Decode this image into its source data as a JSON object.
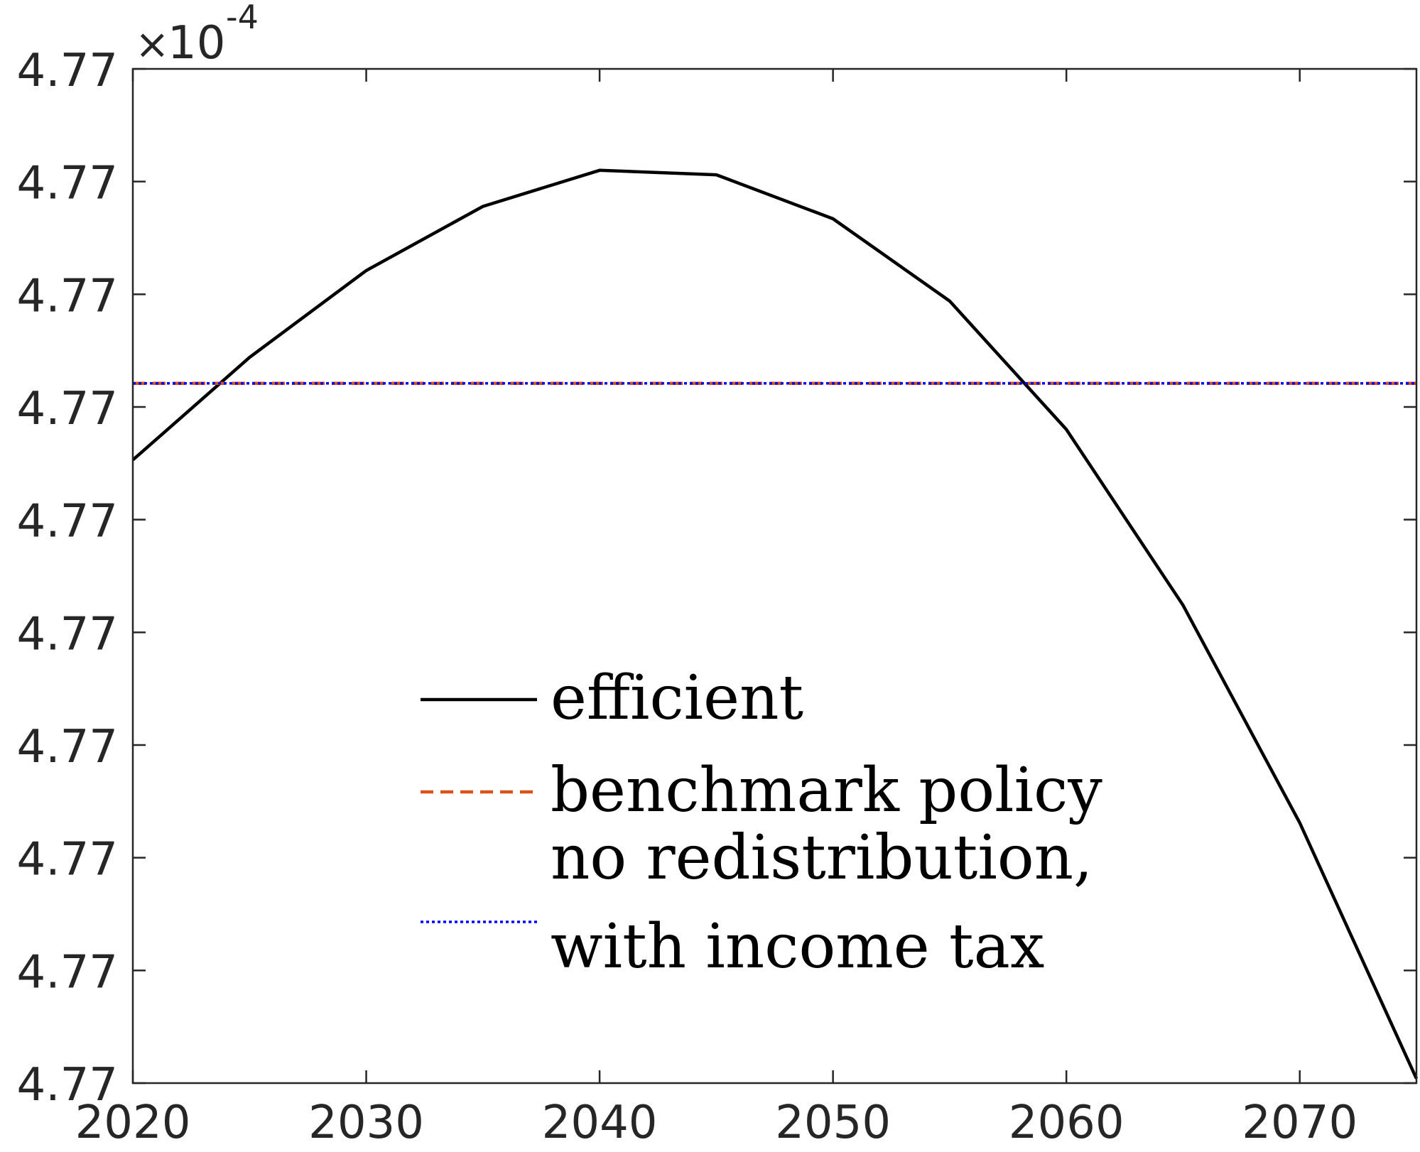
{
  "chart_data": {
    "type": "line",
    "title": "",
    "xlabel": "",
    "ylabel": "",
    "x": [
      2020,
      2025,
      2030,
      2035,
      2040,
      2045,
      2050,
      2055,
      2060,
      2065,
      2070,
      2075
    ],
    "xlim": [
      2020,
      2075
    ],
    "xticks": [
      "2020",
      "2030",
      "2040",
      "2050",
      "2060",
      "2070"
    ],
    "ylim": [
      0,
      9
    ],
    "yticks": [
      "4.77",
      "4.77",
      "4.77",
      "4.77",
      "4.77",
      "4.77",
      "4.77",
      "4.77",
      "4.77",
      "4.77"
    ],
    "y_multiplier": {
      "times": "×",
      "base": "10",
      "exponent": "-4"
    },
    "grid": false,
    "legend": "center",
    "series": [
      {
        "name": "efficient",
        "color": "#000000",
        "style": "solid",
        "values": [
          5.53,
          6.44,
          7.21,
          7.78,
          8.1,
          8.06,
          7.67,
          6.94,
          5.8,
          4.24,
          2.31,
          0.04
        ]
      },
      {
        "name": "benchmark policy",
        "color": "#D95319",
        "style": "dashed",
        "values": [
          6.21,
          6.21,
          6.21,
          6.21,
          6.21,
          6.21,
          6.21,
          6.21,
          6.21,
          6.21,
          6.21,
          6.21
        ]
      },
      {
        "name": "no redistribution, with income tax",
        "name_lines": [
          "no redistribution,",
          "with income tax"
        ],
        "color": "#0000FF",
        "style": "dotted",
        "values": [
          6.21,
          6.21,
          6.21,
          6.21,
          6.21,
          6.21,
          6.21,
          6.21,
          6.21,
          6.21,
          6.21,
          6.21
        ]
      }
    ]
  }
}
